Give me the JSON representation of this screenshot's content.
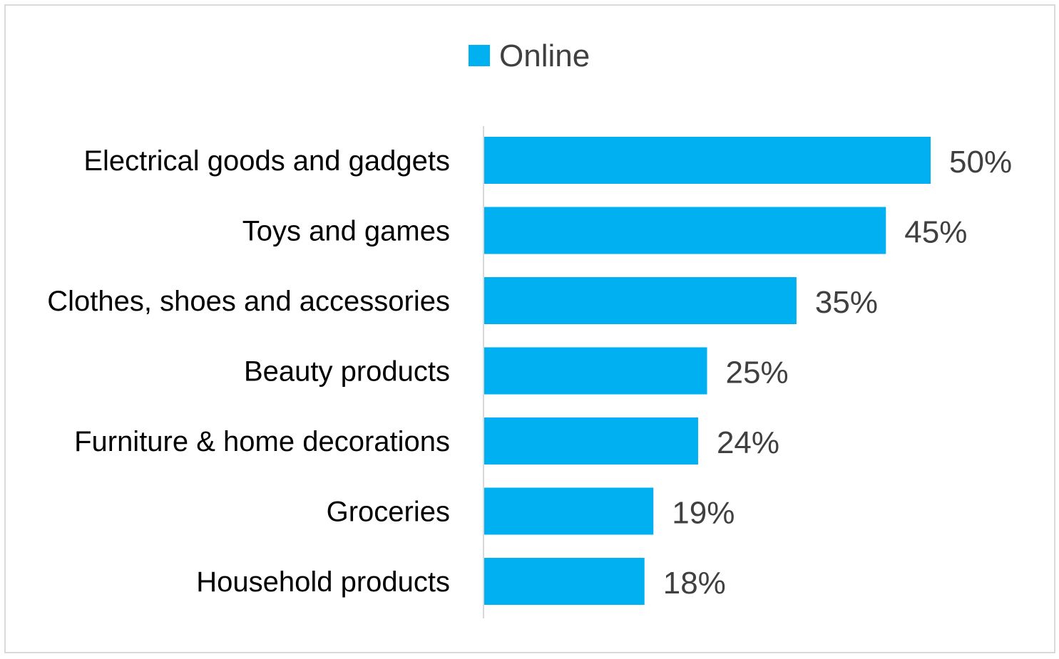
{
  "chart_data": {
    "type": "bar",
    "orientation": "horizontal",
    "categories": [
      "Electrical goods and gadgets",
      "Toys and games",
      "Clothes, shoes and accessories",
      "Beauty products",
      "Furniture & home decorations",
      "Groceries",
      "Household products"
    ],
    "series": [
      {
        "name": "Online",
        "values": [
          50,
          45,
          35,
          25,
          24,
          19,
          18
        ],
        "data_labels": [
          "50%",
          "45%",
          "35%",
          "25%",
          "24%",
          "19%",
          "18%"
        ],
        "color": "#00B0F0"
      }
    ],
    "xlim": [
      0,
      50
    ],
    "grid": false,
    "legend": "top-center"
  }
}
